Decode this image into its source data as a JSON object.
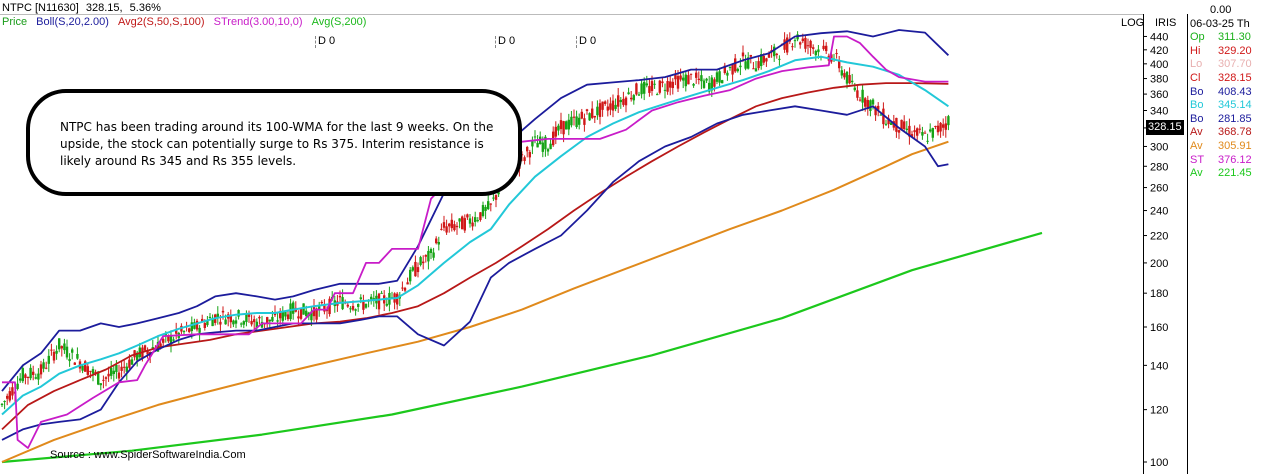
{
  "header": {
    "symbol": "NTPC [N11630]",
    "price": "328.15,",
    "change": "5.36%",
    "legend": [
      {
        "text": "Price",
        "color": "#1a9c1a"
      },
      {
        "text": "Boll(S,20,2.00)",
        "color": "#1c1c9c"
      },
      {
        "text": "Avg2(S,50,S,100)",
        "color": "#c01818"
      },
      {
        "text": "STrend(3.00,10,0)",
        "color": "#c81cc8"
      },
      {
        "text": "Avg(S,200)",
        "color": "#1cb81c"
      }
    ]
  },
  "dividend_markers": [
    "D 0",
    "D 0",
    "D 0"
  ],
  "note": "NTPC has been trading around its 100-WMA for the last 9 weeks. On the upside, the stock can potentially surge to Rs 375. Interim resistance is likely around Rs 345 and Rs 355 levels.",
  "source": "Source :  www.SpiderSoftwareIndia.Com",
  "top_labels": {
    "log": "LOG",
    "iris": "IRIS"
  },
  "last_price_tag": "328.15",
  "info_panel": {
    "value": "0.00",
    "date": "06-03-25 Th",
    "rows": [
      {
        "label": "Op",
        "value": "311.30",
        "color": "#1ab01a"
      },
      {
        "label": "Hi",
        "value": "329.20",
        "color": "#d01818"
      },
      {
        "label": "Lo",
        "value": "307.70",
        "color": "#e8b0b0"
      },
      {
        "label": "Cl",
        "value": "328.15",
        "color": "#d01818"
      },
      {
        "label": "Bo",
        "value": "408.43",
        "color": "#1c1c9c"
      },
      {
        "label": "Bo",
        "value": "345.14",
        "color": "#22c8d8"
      },
      {
        "label": "Bo",
        "value": "281.85",
        "color": "#1c1c9c"
      },
      {
        "label": "Av",
        "value": "368.78",
        "color": "#b81818"
      },
      {
        "label": "Av",
        "value": "305.91",
        "color": "#e08a1c"
      },
      {
        "label": "ST",
        "value": "376.12",
        "color": "#c81cc8"
      },
      {
        "label": "Av",
        "value": "221.45",
        "color": "#1cc81c"
      }
    ]
  },
  "chart_data": {
    "type": "line",
    "scale": "log",
    "ylim": [
      100,
      450
    ],
    "y_ticks": [
      100,
      120,
      140,
      160,
      180,
      200,
      220,
      240,
      260,
      280,
      300,
      320,
      340,
      360,
      380,
      400,
      420,
      440
    ],
    "colors": {
      "bull": "#16a316",
      "bear": "#d01818",
      "boll_upper": "#1c1c9c",
      "boll_mid": "#22c8d8",
      "boll_lower": "#1c1c9c",
      "avg50": "#b81818",
      "avg100": "#e08a1c",
      "strend": "#c81cc8",
      "avg200": "#1cc81c"
    },
    "candle_anchors": [
      [
        0,
        122
      ],
      [
        8,
        135
      ],
      [
        15,
        137
      ],
      [
        22,
        150
      ],
      [
        30,
        142
      ],
      [
        38,
        133
      ],
      [
        45,
        137
      ],
      [
        52,
        145
      ],
      [
        60,
        150
      ],
      [
        68,
        156
      ],
      [
        75,
        160
      ],
      [
        82,
        166
      ],
      [
        90,
        166
      ],
      [
        98,
        163
      ],
      [
        105,
        164
      ],
      [
        112,
        170
      ],
      [
        120,
        168
      ],
      [
        130,
        175
      ],
      [
        138,
        173
      ],
      [
        145,
        175
      ],
      [
        152,
        178
      ],
      [
        160,
        198
      ],
      [
        165,
        205
      ],
      [
        170,
        226
      ],
      [
        176,
        228
      ],
      [
        182,
        234
      ],
      [
        188,
        243
      ],
      [
        195,
        278
      ],
      [
        200,
        286
      ],
      [
        205,
        304
      ],
      [
        210,
        302
      ],
      [
        215,
        320
      ],
      [
        222,
        330
      ],
      [
        230,
        340
      ],
      [
        238,
        352
      ],
      [
        245,
        366
      ],
      [
        252,
        368
      ],
      [
        258,
        376
      ],
      [
        265,
        380
      ],
      [
        272,
        372
      ],
      [
        280,
        392
      ],
      [
        285,
        405
      ],
      [
        290,
        400
      ],
      [
        295,
        410
      ],
      [
        300,
        420
      ],
      [
        305,
        440
      ],
      [
        310,
        428
      ],
      [
        315,
        418
      ],
      [
        320,
        410
      ],
      [
        326,
        375
      ],
      [
        330,
        360
      ],
      [
        335,
        345
      ],
      [
        340,
        330
      ],
      [
        345,
        322
      ],
      [
        350,
        315
      ],
      [
        355,
        310
      ],
      [
        360,
        318
      ],
      [
        364,
        328
      ]
    ],
    "lines": {
      "boll_upper": [
        [
          0,
          128
        ],
        [
          8,
          140
        ],
        [
          15,
          146
        ],
        [
          22,
          158
        ],
        [
          30,
          158
        ],
        [
          38,
          162
        ],
        [
          45,
          160
        ],
        [
          52,
          162
        ],
        [
          60,
          165
        ],
        [
          68,
          168
        ],
        [
          75,
          172
        ],
        [
          82,
          178
        ],
        [
          90,
          180
        ],
        [
          98,
          178
        ],
        [
          105,
          176
        ],
        [
          112,
          178
        ],
        [
          120,
          182
        ],
        [
          130,
          186
        ],
        [
          138,
          186
        ],
        [
          145,
          186
        ],
        [
          152,
          188
        ],
        [
          160,
          212
        ],
        [
          170,
          255
        ],
        [
          180,
          262
        ],
        [
          188,
          268
        ],
        [
          195,
          305
        ],
        [
          205,
          330
        ],
        [
          215,
          355
        ],
        [
          225,
          372
        ],
        [
          235,
          375
        ],
        [
          245,
          378
        ],
        [
          255,
          382
        ],
        [
          265,
          392
        ],
        [
          275,
          392
        ],
        [
          285,
          405
        ],
        [
          295,
          415
        ],
        [
          305,
          440
        ],
        [
          315,
          445
        ],
        [
          325,
          448
        ],
        [
          335,
          440
        ],
        [
          345,
          450
        ],
        [
          355,
          446
        ],
        [
          364,
          412
        ]
      ],
      "boll_mid": [
        [
          0,
          118
        ],
        [
          8,
          126
        ],
        [
          15,
          130
        ],
        [
          22,
          136
        ],
        [
          30,
          140
        ],
        [
          38,
          143
        ],
        [
          45,
          146
        ],
        [
          52,
          150
        ],
        [
          60,
          155
        ],
        [
          68,
          159
        ],
        [
          75,
          162
        ],
        [
          82,
          165
        ],
        [
          90,
          167
        ],
        [
          98,
          168
        ],
        [
          105,
          168
        ],
        [
          112,
          170
        ],
        [
          120,
          172
        ],
        [
          130,
          174
        ],
        [
          138,
          175
        ],
        [
          145,
          176
        ],
        [
          152,
          177
        ],
        [
          160,
          185
        ],
        [
          170,
          200
        ],
        [
          180,
          215
        ],
        [
          188,
          225
        ],
        [
          195,
          245
        ],
        [
          205,
          270
        ],
        [
          215,
          290
        ],
        [
          225,
          310
        ],
        [
          235,
          325
        ],
        [
          245,
          338
        ],
        [
          255,
          348
        ],
        [
          265,
          358
        ],
        [
          275,
          368
        ],
        [
          285,
          378
        ],
        [
          295,
          390
        ],
        [
          305,
          405
        ],
        [
          315,
          410
        ],
        [
          325,
          402
        ],
        [
          335,
          396
        ],
        [
          345,
          385
        ],
        [
          355,
          365
        ],
        [
          364,
          345
        ]
      ],
      "boll_lower": [
        [
          0,
          108
        ],
        [
          8,
          112
        ],
        [
          15,
          114
        ],
        [
          22,
          115
        ],
        [
          30,
          116
        ],
        [
          38,
          120
        ],
        [
          45,
          132
        ],
        [
          52,
          142
        ],
        [
          60,
          148
        ],
        [
          68,
          153
        ],
        [
          75,
          156
        ],
        [
          82,
          157
        ],
        [
          90,
          158
        ],
        [
          98,
          158
        ],
        [
          105,
          160
        ],
        [
          112,
          162
        ],
        [
          120,
          162
        ],
        [
          130,
          162
        ],
        [
          138,
          164
        ],
        [
          145,
          166
        ],
        [
          152,
          166
        ],
        [
          160,
          156
        ],
        [
          170,
          150
        ],
        [
          180,
          163
        ],
        [
          188,
          190
        ],
        [
          195,
          200
        ],
        [
          205,
          210
        ],
        [
          215,
          220
        ],
        [
          225,
          240
        ],
        [
          235,
          265
        ],
        [
          245,
          285
        ],
        [
          255,
          300
        ],
        [
          265,
          310
        ],
        [
          275,
          325
        ],
        [
          285,
          335
        ],
        [
          295,
          340
        ],
        [
          305,
          345
        ],
        [
          315,
          340
        ],
        [
          325,
          335
        ],
        [
          335,
          345
        ],
        [
          345,
          320
        ],
        [
          355,
          300
        ],
        [
          360,
          280
        ],
        [
          364,
          282
        ]
      ],
      "avg50": [
        [
          0,
          112
        ],
        [
          10,
          122
        ],
        [
          20,
          128
        ],
        [
          30,
          133
        ],
        [
          40,
          138
        ],
        [
          50,
          145
        ],
        [
          60,
          149
        ],
        [
          70,
          151
        ],
        [
          80,
          153
        ],
        [
          90,
          156
        ],
        [
          100,
          158
        ],
        [
          110,
          160
        ],
        [
          120,
          162
        ],
        [
          130,
          163
        ],
        [
          140,
          165
        ],
        [
          150,
          168
        ],
        [
          160,
          172
        ],
        [
          170,
          180
        ],
        [
          180,
          190
        ],
        [
          190,
          200
        ],
        [
          200,
          212
        ],
        [
          210,
          225
        ],
        [
          220,
          240
        ],
        [
          230,
          255
        ],
        [
          240,
          270
        ],
        [
          250,
          285
        ],
        [
          260,
          300
        ],
        [
          270,
          315
        ],
        [
          280,
          330
        ],
        [
          290,
          345
        ],
        [
          300,
          355
        ],
        [
          310,
          362
        ],
        [
          320,
          368
        ],
        [
          330,
          372
        ],
        [
          340,
          374
        ],
        [
          350,
          374
        ],
        [
          364,
          373
        ]
      ],
      "avg100": [
        [
          0,
          100
        ],
        [
          20,
          108
        ],
        [
          40,
          115
        ],
        [
          60,
          122
        ],
        [
          80,
          128
        ],
        [
          100,
          134
        ],
        [
          120,
          140
        ],
        [
          140,
          146
        ],
        [
          160,
          152
        ],
        [
          180,
          160
        ],
        [
          200,
          170
        ],
        [
          220,
          183
        ],
        [
          240,
          196
        ],
        [
          260,
          210
        ],
        [
          280,
          225
        ],
        [
          300,
          240
        ],
        [
          320,
          258
        ],
        [
          340,
          280
        ],
        [
          350,
          292
        ],
        [
          364,
          305
        ]
      ],
      "strend": [
        [
          0,
          132
        ],
        [
          5,
          132
        ],
        [
          6,
          108
        ],
        [
          10,
          105
        ],
        [
          15,
          115
        ],
        [
          25,
          118
        ],
        [
          35,
          125
        ],
        [
          45,
          132
        ],
        [
          52,
          133
        ],
        [
          55,
          140
        ],
        [
          62,
          155
        ],
        [
          75,
          156
        ],
        [
          95,
          156
        ],
        [
          100,
          162
        ],
        [
          115,
          162
        ],
        [
          120,
          170
        ],
        [
          125,
          170
        ],
        [
          128,
          180
        ],
        [
          135,
          180
        ],
        [
          140,
          200
        ],
        [
          145,
          200
        ],
        [
          150,
          210
        ],
        [
          160,
          210
        ],
        [
          165,
          250
        ],
        [
          170,
          262
        ],
        [
          178,
          262
        ],
        [
          182,
          270
        ],
        [
          195,
          300
        ],
        [
          200,
          305
        ],
        [
          210,
          308
        ],
        [
          230,
          308
        ],
        [
          240,
          318
        ],
        [
          250,
          340
        ],
        [
          260,
          350
        ],
        [
          270,
          358
        ],
        [
          280,
          365
        ],
        [
          290,
          380
        ],
        [
          300,
          390
        ],
        [
          310,
          395
        ],
        [
          318,
          398
        ],
        [
          320,
          440
        ],
        [
          325,
          440
        ],
        [
          330,
          430
        ],
        [
          335,
          410
        ],
        [
          340,
          392
        ],
        [
          345,
          382
        ],
        [
          355,
          376
        ],
        [
          364,
          376
        ]
      ],
      "avg200": [
        [
          0,
          100
        ],
        [
          50,
          104
        ],
        [
          100,
          110
        ],
        [
          150,
          118
        ],
        [
          200,
          130
        ],
        [
          250,
          145
        ],
        [
          300,
          165
        ],
        [
          350,
          195
        ],
        [
          400,
          222
        ]
      ]
    }
  }
}
